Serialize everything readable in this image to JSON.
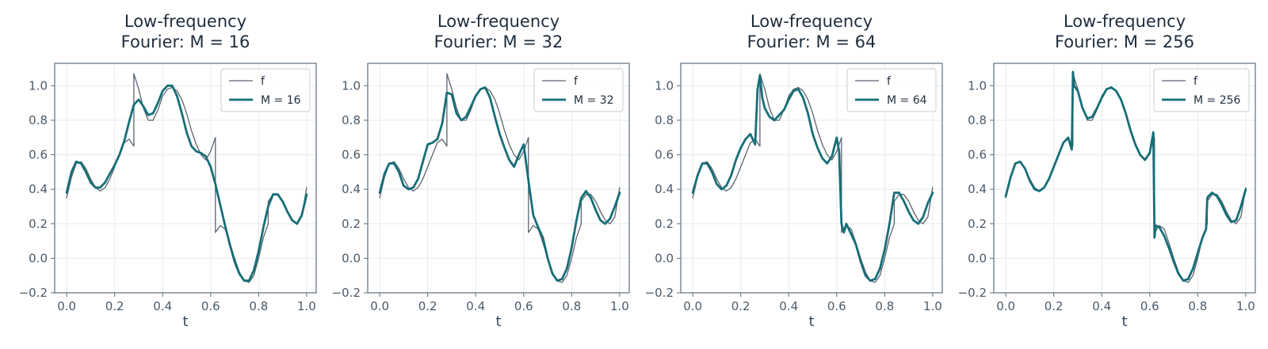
{
  "chart_data": [
    {
      "type": "line",
      "title": "Low-frequency\nFourier: M = 16",
      "xlabel": "t",
      "ylabel": "",
      "xlim": [
        -0.05,
        1.04
      ],
      "ylim": [
        -0.2,
        1.13
      ],
      "xticks": [
        "0.0",
        "0.2",
        "0.4",
        "0.6",
        "0.8",
        "1.0"
      ],
      "yticks": [
        "−0.2",
        "0.0",
        "0.2",
        "0.4",
        "0.6",
        "0.8",
        "1.0"
      ],
      "grid": true,
      "legend": "top-right",
      "series": [
        {
          "name": "f",
          "color": "#5a6470",
          "x": [
            0.0,
            0.02,
            0.04,
            0.06,
            0.08,
            0.1,
            0.12,
            0.14,
            0.16,
            0.18,
            0.2,
            0.22,
            0.24,
            0.26,
            0.28,
            0.28,
            0.3,
            0.32,
            0.34,
            0.36,
            0.38,
            0.4,
            0.42,
            0.44,
            0.46,
            0.48,
            0.5,
            0.52,
            0.54,
            0.56,
            0.58,
            0.6,
            0.62,
            0.62,
            0.64,
            0.66,
            0.68,
            0.7,
            0.72,
            0.74,
            0.76,
            0.78,
            0.8,
            0.82,
            0.84,
            0.84,
            0.86,
            0.88,
            0.9,
            0.92,
            0.94,
            0.96,
            0.98,
            1.0
          ],
          "y": [
            0.35,
            0.47,
            0.55,
            0.56,
            0.52,
            0.46,
            0.41,
            0.39,
            0.41,
            0.46,
            0.53,
            0.6,
            0.67,
            0.69,
            0.65,
            1.07,
            0.98,
            0.87,
            0.8,
            0.8,
            0.86,
            0.94,
            0.98,
            0.99,
            0.97,
            0.92,
            0.84,
            0.74,
            0.66,
            0.6,
            0.57,
            0.62,
            0.7,
            0.15,
            0.19,
            0.17,
            0.09,
            0.0,
            -0.08,
            -0.13,
            -0.14,
            -0.1,
            0.0,
            0.12,
            0.2,
            0.33,
            0.37,
            0.37,
            0.33,
            0.27,
            0.22,
            0.2,
            0.24,
            0.41
          ]
        },
        {
          "name": "M = 16",
          "color": "#166e78",
          "x": [
            0.0,
            0.02,
            0.04,
            0.06,
            0.08,
            0.1,
            0.12,
            0.14,
            0.16,
            0.18,
            0.2,
            0.22,
            0.24,
            0.26,
            0.28,
            0.3,
            0.32,
            0.34,
            0.36,
            0.38,
            0.4,
            0.42,
            0.44,
            0.46,
            0.48,
            0.5,
            0.52,
            0.54,
            0.56,
            0.58,
            0.6,
            0.62,
            0.64,
            0.66,
            0.68,
            0.7,
            0.72,
            0.74,
            0.76,
            0.78,
            0.8,
            0.82,
            0.84,
            0.86,
            0.88,
            0.9,
            0.92,
            0.94,
            0.96,
            0.98,
            1.0
          ],
          "y": [
            0.38,
            0.5,
            0.56,
            0.55,
            0.5,
            0.44,
            0.41,
            0.41,
            0.44,
            0.49,
            0.54,
            0.6,
            0.68,
            0.79,
            0.89,
            0.92,
            0.88,
            0.83,
            0.84,
            0.9,
            0.97,
            1.0,
            1.0,
            0.94,
            0.84,
            0.73,
            0.65,
            0.62,
            0.61,
            0.59,
            0.53,
            0.43,
            0.31,
            0.19,
            0.08,
            -0.02,
            -0.09,
            -0.13,
            -0.13,
            -0.07,
            0.04,
            0.18,
            0.3,
            0.37,
            0.37,
            0.33,
            0.27,
            0.22,
            0.2,
            0.25,
            0.37
          ]
        }
      ]
    },
    {
      "type": "line",
      "title": "Low-frequency\nFourier: M = 32",
      "xlabel": "t",
      "ylabel": "",
      "xlim": [
        -0.05,
        1.04
      ],
      "ylim": [
        -0.2,
        1.13
      ],
      "xticks": [
        "0.0",
        "0.2",
        "0.4",
        "0.6",
        "0.8",
        "1.0"
      ],
      "yticks": [
        "−0.2",
        "0.0",
        "0.2",
        "0.4",
        "0.6",
        "0.8",
        "1.0"
      ],
      "grid": true,
      "legend": "top-right",
      "series": [
        {
          "name": "f",
          "color": "#5a6470",
          "x": [
            0.0,
            0.02,
            0.04,
            0.06,
            0.08,
            0.1,
            0.12,
            0.14,
            0.16,
            0.18,
            0.2,
            0.22,
            0.24,
            0.26,
            0.28,
            0.28,
            0.3,
            0.32,
            0.34,
            0.36,
            0.38,
            0.4,
            0.42,
            0.44,
            0.46,
            0.48,
            0.5,
            0.52,
            0.54,
            0.56,
            0.58,
            0.6,
            0.62,
            0.62,
            0.64,
            0.66,
            0.68,
            0.7,
            0.72,
            0.74,
            0.76,
            0.78,
            0.8,
            0.82,
            0.84,
            0.84,
            0.86,
            0.88,
            0.9,
            0.92,
            0.94,
            0.96,
            0.98,
            1.0
          ],
          "y": [
            0.35,
            0.47,
            0.55,
            0.56,
            0.52,
            0.46,
            0.41,
            0.39,
            0.41,
            0.46,
            0.53,
            0.6,
            0.67,
            0.69,
            0.65,
            1.07,
            0.98,
            0.87,
            0.8,
            0.8,
            0.86,
            0.94,
            0.98,
            0.99,
            0.97,
            0.92,
            0.84,
            0.74,
            0.66,
            0.6,
            0.57,
            0.62,
            0.7,
            0.15,
            0.19,
            0.17,
            0.09,
            0.0,
            -0.08,
            -0.13,
            -0.14,
            -0.1,
            0.0,
            0.12,
            0.2,
            0.33,
            0.37,
            0.37,
            0.33,
            0.27,
            0.22,
            0.2,
            0.24,
            0.41
          ]
        },
        {
          "name": "M = 32",
          "color": "#166e78",
          "x": [
            0.0,
            0.02,
            0.04,
            0.06,
            0.08,
            0.1,
            0.12,
            0.14,
            0.16,
            0.18,
            0.2,
            0.22,
            0.24,
            0.26,
            0.28,
            0.3,
            0.32,
            0.34,
            0.36,
            0.38,
            0.4,
            0.42,
            0.44,
            0.46,
            0.48,
            0.5,
            0.52,
            0.54,
            0.56,
            0.58,
            0.6,
            0.62,
            0.64,
            0.66,
            0.68,
            0.7,
            0.72,
            0.74,
            0.76,
            0.78,
            0.8,
            0.82,
            0.84,
            0.86,
            0.88,
            0.9,
            0.92,
            0.94,
            0.96,
            0.98,
            1.0
          ],
          "y": [
            0.38,
            0.49,
            0.55,
            0.55,
            0.5,
            0.42,
            0.4,
            0.41,
            0.46,
            0.56,
            0.66,
            0.67,
            0.69,
            0.78,
            0.96,
            0.95,
            0.84,
            0.8,
            0.82,
            0.88,
            0.94,
            0.98,
            0.99,
            0.93,
            0.82,
            0.72,
            0.64,
            0.57,
            0.53,
            0.6,
            0.66,
            0.45,
            0.25,
            0.18,
            0.12,
            0.0,
            -0.09,
            -0.13,
            -0.12,
            -0.06,
            0.06,
            0.22,
            0.35,
            0.39,
            0.35,
            0.28,
            0.22,
            0.2,
            0.23,
            0.3,
            0.38
          ]
        }
      ]
    },
    {
      "type": "line",
      "title": "Low-frequency\nFourier: M = 64",
      "xlabel": "t",
      "ylabel": "",
      "xlim": [
        -0.05,
        1.04
      ],
      "ylim": [
        -0.2,
        1.13
      ],
      "xticks": [
        "0.0",
        "0.2",
        "0.4",
        "0.6",
        "0.8",
        "1.0"
      ],
      "yticks": [
        "−0.2",
        "0.0",
        "0.2",
        "0.4",
        "0.6",
        "0.8",
        "1.0"
      ],
      "grid": true,
      "legend": "top-right",
      "series": [
        {
          "name": "f",
          "color": "#5a6470",
          "x": [
            0.0,
            0.02,
            0.04,
            0.06,
            0.08,
            0.1,
            0.12,
            0.14,
            0.16,
            0.18,
            0.2,
            0.22,
            0.24,
            0.26,
            0.28,
            0.28,
            0.3,
            0.32,
            0.34,
            0.36,
            0.38,
            0.4,
            0.42,
            0.44,
            0.46,
            0.48,
            0.5,
            0.52,
            0.54,
            0.56,
            0.58,
            0.6,
            0.62,
            0.62,
            0.64,
            0.66,
            0.68,
            0.7,
            0.72,
            0.74,
            0.76,
            0.78,
            0.8,
            0.82,
            0.84,
            0.84,
            0.86,
            0.88,
            0.9,
            0.92,
            0.94,
            0.96,
            0.98,
            1.0
          ],
          "y": [
            0.35,
            0.47,
            0.55,
            0.56,
            0.52,
            0.46,
            0.41,
            0.39,
            0.41,
            0.46,
            0.53,
            0.6,
            0.67,
            0.69,
            0.65,
            1.07,
            0.98,
            0.87,
            0.8,
            0.8,
            0.86,
            0.94,
            0.98,
            0.99,
            0.97,
            0.92,
            0.84,
            0.74,
            0.66,
            0.6,
            0.57,
            0.62,
            0.7,
            0.15,
            0.19,
            0.17,
            0.09,
            0.0,
            -0.08,
            -0.13,
            -0.14,
            -0.1,
            0.0,
            0.12,
            0.2,
            0.33,
            0.37,
            0.37,
            0.33,
            0.27,
            0.22,
            0.2,
            0.24,
            0.41
          ]
        },
        {
          "name": "M = 64",
          "color": "#166e78",
          "x": [
            0.0,
            0.02,
            0.04,
            0.06,
            0.08,
            0.1,
            0.12,
            0.14,
            0.16,
            0.18,
            0.2,
            0.22,
            0.24,
            0.26,
            0.27,
            0.28,
            0.29,
            0.3,
            0.32,
            0.34,
            0.36,
            0.38,
            0.4,
            0.42,
            0.44,
            0.46,
            0.48,
            0.5,
            0.52,
            0.54,
            0.56,
            0.58,
            0.6,
            0.61,
            0.62,
            0.63,
            0.64,
            0.66,
            0.68,
            0.7,
            0.72,
            0.74,
            0.76,
            0.78,
            0.8,
            0.82,
            0.84,
            0.86,
            0.88,
            0.9,
            0.92,
            0.94,
            0.96,
            0.98,
            1.0
          ],
          "y": [
            0.38,
            0.48,
            0.55,
            0.55,
            0.5,
            0.43,
            0.4,
            0.42,
            0.48,
            0.57,
            0.64,
            0.69,
            0.72,
            0.66,
            0.98,
            1.06,
            0.93,
            0.87,
            0.82,
            0.8,
            0.83,
            0.86,
            0.92,
            0.97,
            0.98,
            0.93,
            0.84,
            0.72,
            0.64,
            0.58,
            0.55,
            0.59,
            0.7,
            0.62,
            0.2,
            0.15,
            0.2,
            0.14,
            0.08,
            -0.02,
            -0.1,
            -0.13,
            -0.12,
            -0.06,
            0.05,
            0.2,
            0.38,
            0.38,
            0.33,
            0.27,
            0.22,
            0.2,
            0.24,
            0.32,
            0.38
          ]
        }
      ]
    },
    {
      "type": "line",
      "title": "Low-frequency\nFourier: M = 256",
      "xlabel": "t",
      "ylabel": "",
      "xlim": [
        -0.05,
        1.04
      ],
      "ylim": [
        -0.2,
        1.13
      ],
      "xticks": [
        "0.0",
        "0.2",
        "0.4",
        "0.6",
        "0.8",
        "1.0"
      ],
      "yticks": [
        "−0.2",
        "0.0",
        "0.2",
        "0.4",
        "0.6",
        "0.8",
        "1.0"
      ],
      "grid": true,
      "legend": "top-right",
      "series": [
        {
          "name": "f",
          "color": "#5a6470",
          "x": [
            0.0,
            0.02,
            0.04,
            0.06,
            0.08,
            0.1,
            0.12,
            0.14,
            0.16,
            0.18,
            0.2,
            0.22,
            0.24,
            0.26,
            0.28,
            0.28,
            0.3,
            0.32,
            0.34,
            0.36,
            0.38,
            0.4,
            0.42,
            0.44,
            0.46,
            0.48,
            0.5,
            0.52,
            0.54,
            0.56,
            0.58,
            0.6,
            0.62,
            0.62,
            0.64,
            0.66,
            0.68,
            0.7,
            0.72,
            0.74,
            0.76,
            0.78,
            0.8,
            0.82,
            0.84,
            0.84,
            0.86,
            0.88,
            0.9,
            0.92,
            0.94,
            0.96,
            0.98,
            1.0
          ],
          "y": [
            0.35,
            0.47,
            0.55,
            0.56,
            0.52,
            0.46,
            0.41,
            0.39,
            0.41,
            0.46,
            0.53,
            0.6,
            0.67,
            0.69,
            0.65,
            1.07,
            0.98,
            0.87,
            0.8,
            0.8,
            0.86,
            0.94,
            0.98,
            0.99,
            0.97,
            0.92,
            0.84,
            0.74,
            0.66,
            0.6,
            0.57,
            0.62,
            0.7,
            0.15,
            0.19,
            0.17,
            0.09,
            0.0,
            -0.08,
            -0.13,
            -0.14,
            -0.1,
            0.0,
            0.12,
            0.2,
            0.33,
            0.37,
            0.37,
            0.33,
            0.27,
            0.22,
            0.2,
            0.24,
            0.41
          ]
        },
        {
          "name": "M = 256",
          "color": "#166e78",
          "x": [
            0.0,
            0.02,
            0.04,
            0.06,
            0.08,
            0.1,
            0.12,
            0.14,
            0.16,
            0.18,
            0.2,
            0.22,
            0.24,
            0.26,
            0.275,
            0.28,
            0.285,
            0.3,
            0.32,
            0.34,
            0.36,
            0.38,
            0.4,
            0.42,
            0.44,
            0.46,
            0.48,
            0.5,
            0.52,
            0.54,
            0.56,
            0.58,
            0.6,
            0.615,
            0.62,
            0.625,
            0.64,
            0.66,
            0.68,
            0.7,
            0.72,
            0.74,
            0.76,
            0.78,
            0.8,
            0.82,
            0.835,
            0.84,
            0.845,
            0.86,
            0.88,
            0.9,
            0.92,
            0.94,
            0.96,
            0.98,
            1.0
          ],
          "y": [
            0.36,
            0.47,
            0.55,
            0.56,
            0.52,
            0.45,
            0.4,
            0.39,
            0.41,
            0.46,
            0.53,
            0.6,
            0.67,
            0.7,
            0.63,
            1.08,
            1.0,
            0.97,
            0.87,
            0.81,
            0.82,
            0.87,
            0.93,
            0.98,
            0.99,
            0.97,
            0.92,
            0.84,
            0.74,
            0.66,
            0.6,
            0.57,
            0.61,
            0.73,
            0.12,
            0.19,
            0.18,
            0.13,
            0.06,
            -0.02,
            -0.09,
            -0.13,
            -0.12,
            -0.06,
            0.03,
            0.12,
            0.17,
            0.35,
            0.36,
            0.38,
            0.36,
            0.31,
            0.25,
            0.21,
            0.22,
            0.3,
            0.4
          ]
        }
      ]
    }
  ]
}
